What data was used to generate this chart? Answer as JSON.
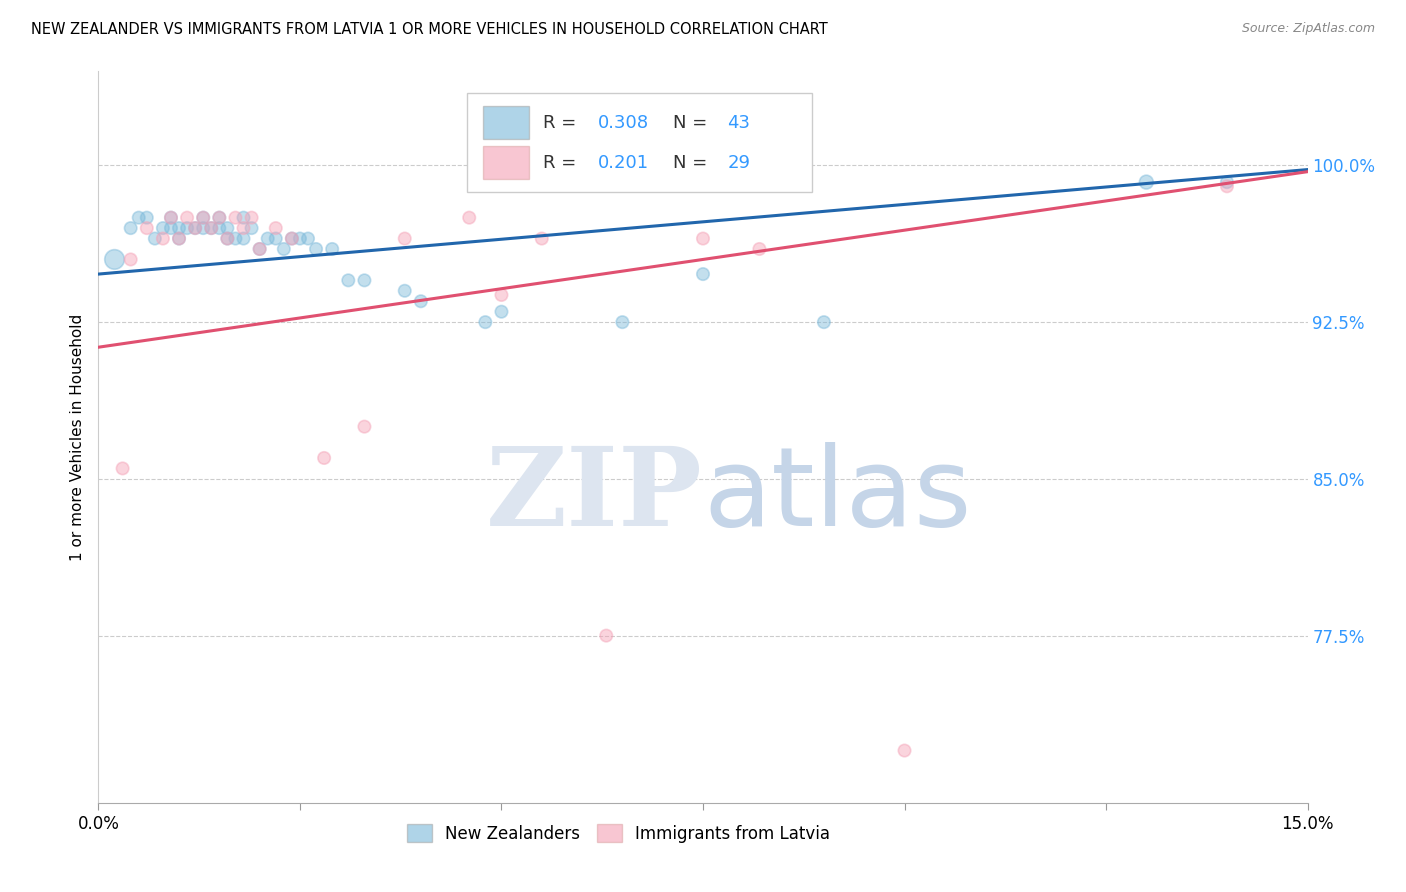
{
  "title": "NEW ZEALANDER VS IMMIGRANTS FROM LATVIA 1 OR MORE VEHICLES IN HOUSEHOLD CORRELATION CHART",
  "source": "Source: ZipAtlas.com",
  "ylabel": "1 or more Vehicles in Household",
  "xlim": [
    0.0,
    0.15
  ],
  "ylim": [
    0.695,
    1.045
  ],
  "yticks": [
    0.775,
    0.85,
    0.925,
    1.0
  ],
  "ytick_labels": [
    "77.5%",
    "85.0%",
    "92.5%",
    "100.0%"
  ],
  "xticks": [
    0.0,
    0.025,
    0.05,
    0.075,
    0.1,
    0.125,
    0.15
  ],
  "xtick_labels": [
    "0.0%",
    "",
    "",
    "",
    "",
    "",
    "15.0%"
  ],
  "blue_color": "#7ab8d9",
  "pink_color": "#f4a0b5",
  "blue_line_color": "#2166ac",
  "pink_line_color": "#e05070",
  "legend_color": "#3399ff",
  "blue_trendline": [
    0.0,
    0.15,
    0.948,
    0.998
  ],
  "pink_trendline": [
    0.0,
    0.15,
    0.913,
    0.997
  ],
  "blue_scatter_x": [
    0.002,
    0.004,
    0.005,
    0.006,
    0.007,
    0.008,
    0.009,
    0.009,
    0.01,
    0.01,
    0.011,
    0.012,
    0.013,
    0.013,
    0.014,
    0.015,
    0.015,
    0.016,
    0.016,
    0.017,
    0.018,
    0.018,
    0.019,
    0.02,
    0.021,
    0.022,
    0.023,
    0.024,
    0.025,
    0.026,
    0.027,
    0.029,
    0.031,
    0.033,
    0.038,
    0.04,
    0.048,
    0.05,
    0.065,
    0.075,
    0.09,
    0.13,
    0.14
  ],
  "blue_scatter_y": [
    0.955,
    0.97,
    0.975,
    0.975,
    0.965,
    0.97,
    0.975,
    0.97,
    0.965,
    0.97,
    0.97,
    0.97,
    0.975,
    0.97,
    0.97,
    0.975,
    0.97,
    0.965,
    0.97,
    0.965,
    0.965,
    0.975,
    0.97,
    0.96,
    0.965,
    0.965,
    0.96,
    0.965,
    0.965,
    0.965,
    0.96,
    0.96,
    0.945,
    0.945,
    0.94,
    0.935,
    0.925,
    0.93,
    0.925,
    0.948,
    0.925,
    0.992,
    0.992
  ],
  "blue_marker_sizes": [
    200,
    80,
    80,
    80,
    80,
    80,
    80,
    80,
    80,
    80,
    80,
    80,
    80,
    80,
    80,
    80,
    80,
    80,
    80,
    80,
    80,
    80,
    80,
    80,
    80,
    80,
    80,
    80,
    80,
    80,
    80,
    80,
    80,
    80,
    80,
    80,
    80,
    80,
    80,
    80,
    80,
    100,
    80
  ],
  "pink_scatter_x": [
    0.003,
    0.004,
    0.006,
    0.008,
    0.009,
    0.01,
    0.011,
    0.012,
    0.013,
    0.014,
    0.015,
    0.016,
    0.017,
    0.018,
    0.019,
    0.02,
    0.022,
    0.024,
    0.028,
    0.033,
    0.038,
    0.046,
    0.05,
    0.055,
    0.063,
    0.075,
    0.082,
    0.1,
    0.14
  ],
  "pink_scatter_y": [
    0.855,
    0.955,
    0.97,
    0.965,
    0.975,
    0.965,
    0.975,
    0.97,
    0.975,
    0.97,
    0.975,
    0.965,
    0.975,
    0.97,
    0.975,
    0.96,
    0.97,
    0.965,
    0.86,
    0.875,
    0.965,
    0.975,
    0.938,
    0.965,
    0.775,
    0.965,
    0.96,
    0.72,
    0.99
  ],
  "pink_marker_sizes": [
    80,
    80,
    80,
    80,
    80,
    80,
    80,
    80,
    80,
    80,
    80,
    80,
    80,
    80,
    80,
    80,
    80,
    80,
    80,
    80,
    80,
    80,
    80,
    80,
    80,
    80,
    80,
    80,
    80
  ]
}
